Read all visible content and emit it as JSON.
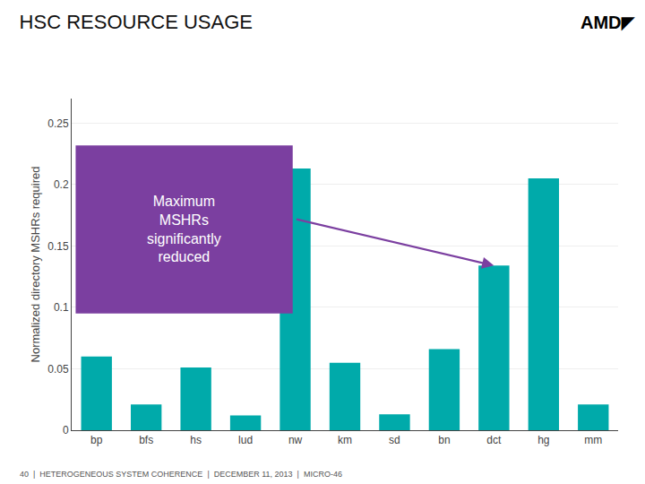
{
  "chart_data": {
    "type": "bar",
    "title": "HSC RESOURCE USAGE",
    "ylabel": "Normalized directory MSHRs required",
    "categories": [
      "bp",
      "bfs",
      "hs",
      "lud",
      "nw",
      "km",
      "sd",
      "bn",
      "dct",
      "hg",
      "mm"
    ],
    "values": [
      0.06,
      0.021,
      0.051,
      0.012,
      0.213,
      0.055,
      0.013,
      0.066,
      0.134,
      0.205,
      0.021
    ],
    "color": "#00AAAA",
    "ylim": [
      0,
      0.27
    ],
    "yticks": [
      0,
      0.05,
      0.1,
      0.15,
      0.2,
      0.25
    ],
    "grid": true,
    "annotations": [
      {
        "text": "Maximum\nMSHRs\nsignificantly\nreduced",
        "x": "dct",
        "color": "#7B3FA0"
      },
      {
        "text": "AMD◤"
      },
      {
        "text": "40  |  HETEROGENEOUS SYSTEM COHERENCE  |  DECEMBER 11, 2013  |  MICRO-46"
      }
    ]
  }
}
